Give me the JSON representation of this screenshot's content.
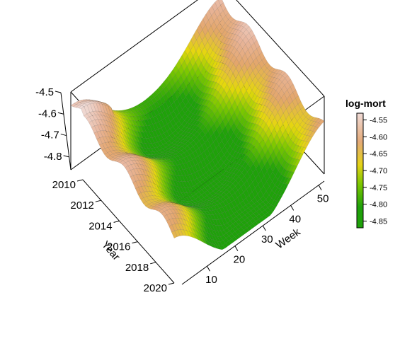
{
  "chart_data": {
    "type": "surface3d",
    "x_axis": {
      "label": "Week",
      "range": [
        1,
        52
      ],
      "ticks": [
        10,
        20,
        30,
        40,
        50
      ]
    },
    "y_axis": {
      "label": "Year",
      "range": [
        2010,
        2020
      ],
      "ticks": [
        2010,
        2012,
        2014,
        2016,
        2018,
        2020
      ]
    },
    "z_axis": {
      "range": [
        -4.85,
        -4.5
      ],
      "ticks": [
        -4.5,
        -4.6,
        -4.7,
        -4.8
      ],
      "tick_labels": [
        "-4.5",
        "-4.6",
        "-4.7",
        "-4.8"
      ]
    },
    "colorbar": {
      "title": "log-mort",
      "ticks": [
        "-4.55",
        "-4.60",
        "-4.65",
        "-4.70",
        "-4.75",
        "-4.80",
        "-4.85"
      ],
      "tick_values": [
        -4.55,
        -4.6,
        -4.65,
        -4.7,
        -4.75,
        -4.8,
        -4.85
      ],
      "range": [
        -4.87,
        -4.53
      ]
    },
    "colors": {
      "low": "#1fa10a",
      "mid_green": "#7dc800",
      "yellow": "#e5d80c",
      "orange": "#e3a66a",
      "salmon": "#e8b49a",
      "high": "#f2e3e3"
    },
    "surface_summary": {
      "winter_peak_log_mort": -4.52,
      "summer_trough_log_mort": -4.86
    }
  }
}
